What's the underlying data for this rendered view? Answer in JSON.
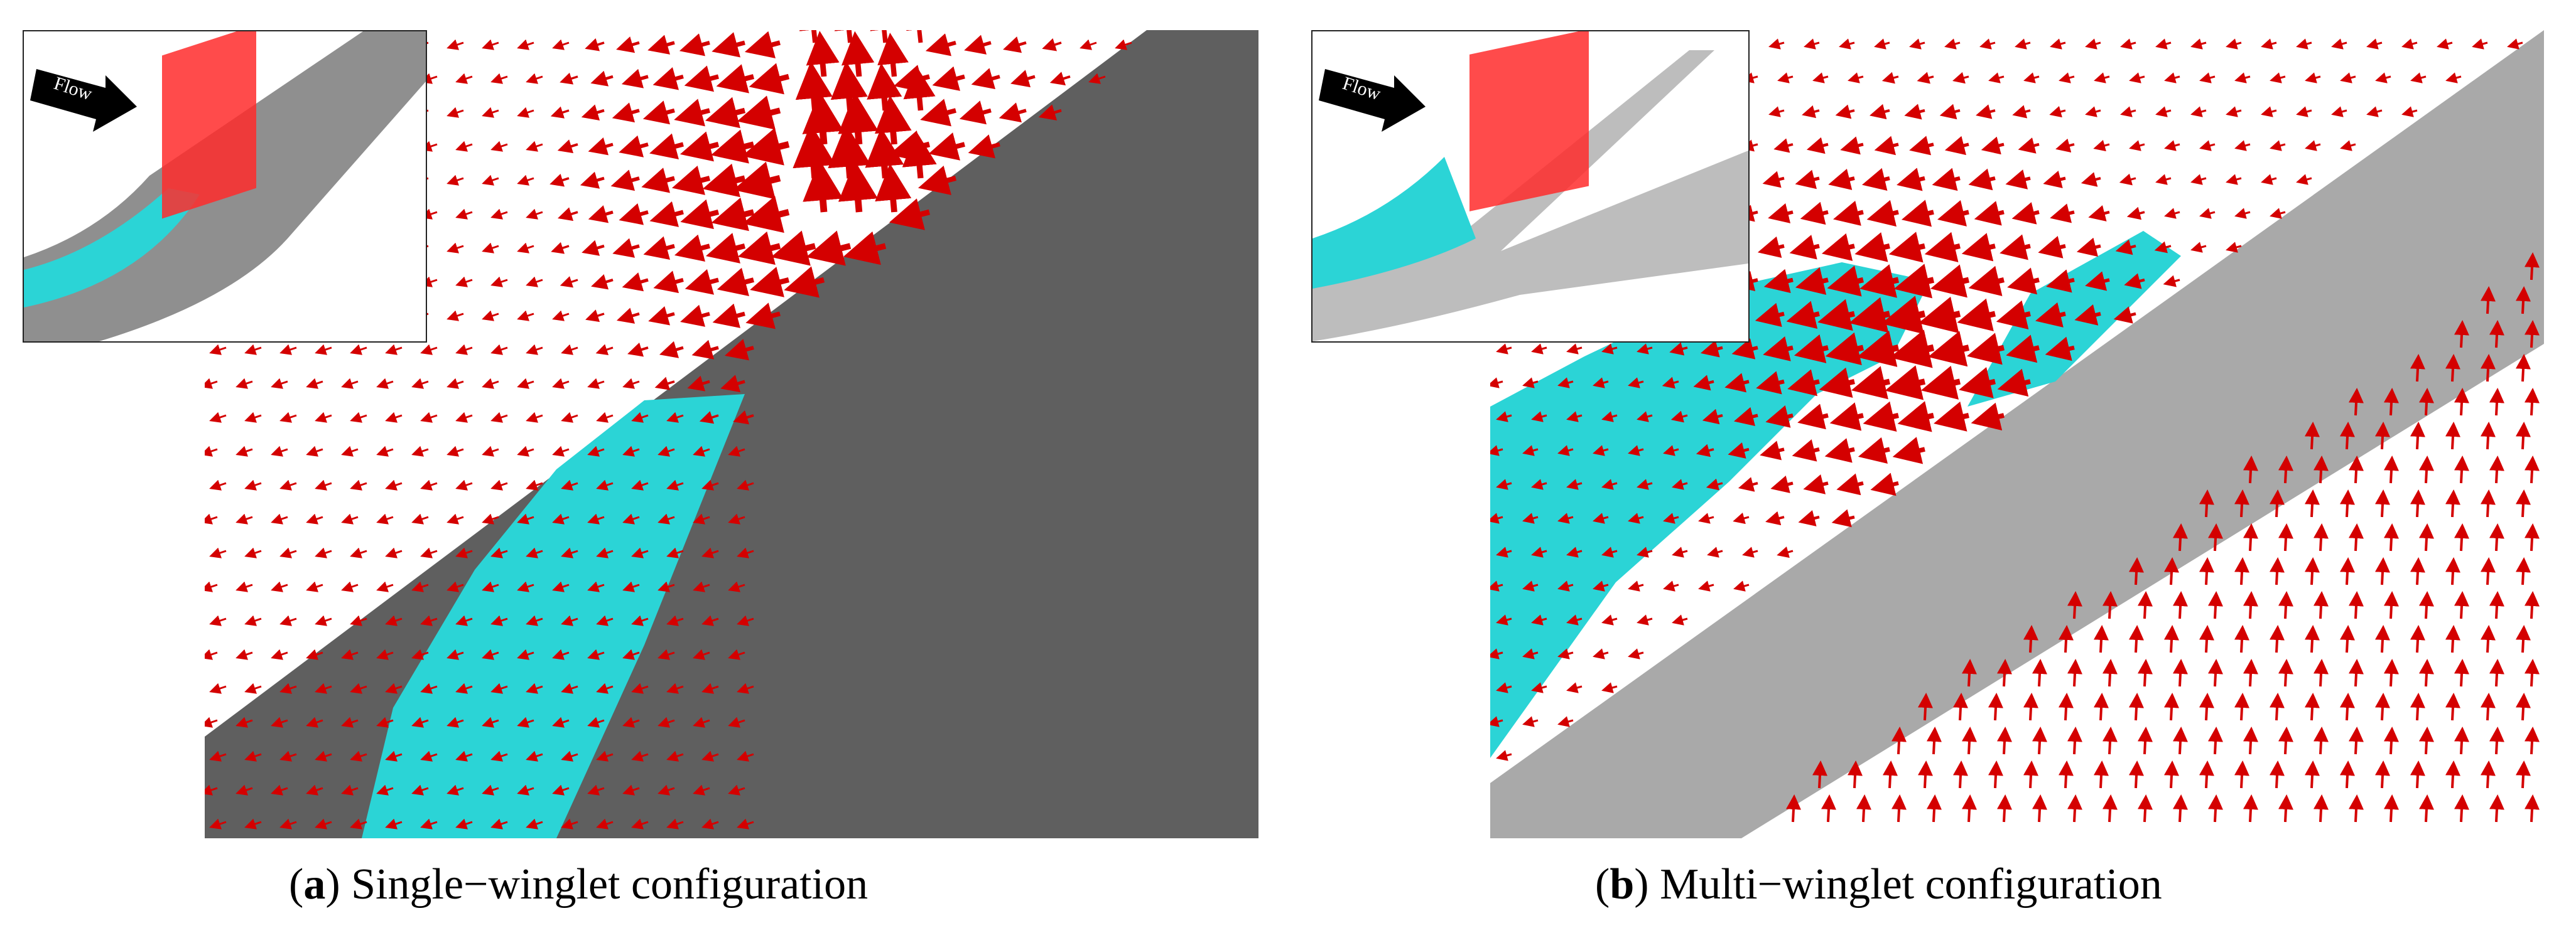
{
  "figure": {
    "panels": [
      {
        "id": "a",
        "letter": "a",
        "caption": "Single−winglet configuration",
        "inset_label": "Flow"
      },
      {
        "id": "b",
        "letter": "b",
        "caption": "Multi−winglet configuration",
        "inset_label": "Flow"
      }
    ],
    "colors": {
      "vector_arrow": "#d40000",
      "isosurface": "#1fd6d6",
      "wing_surface_a": "#5f5f5f",
      "wing_surface_b": "#a9a9a9",
      "plane_highlight": "#ff2b2b"
    },
    "icons": [
      "flow-arrow-icon"
    ]
  }
}
